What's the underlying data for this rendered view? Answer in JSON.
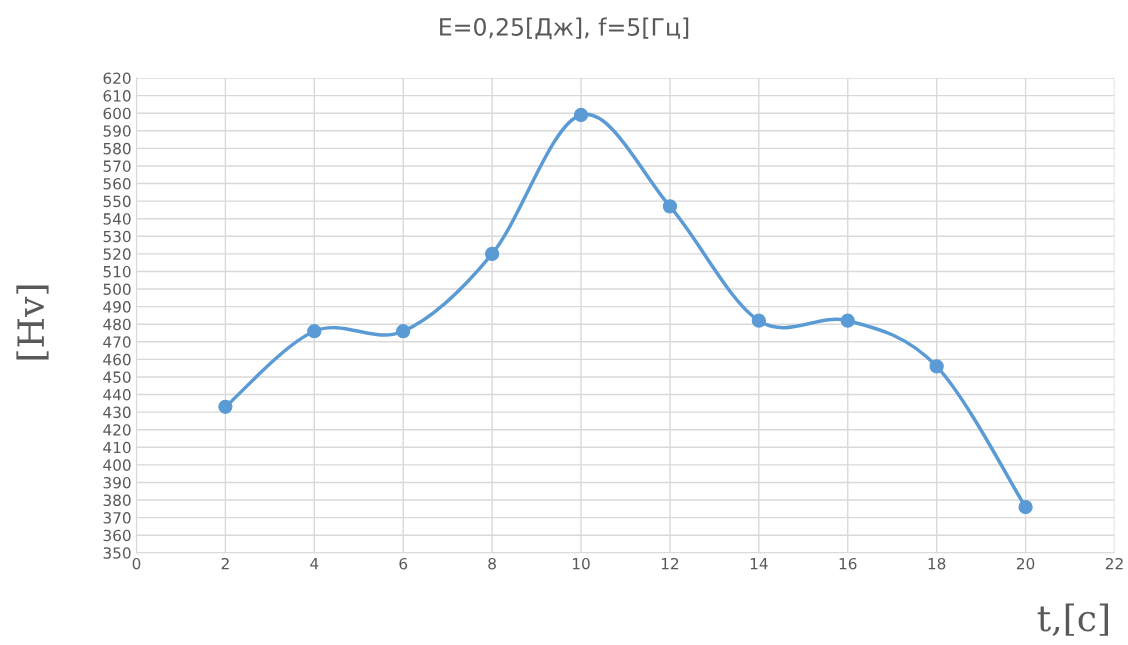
{
  "chart_data": {
    "type": "line",
    "title": "E=0,25[Дж], f=5[Гц]",
    "xlabel": "t,[c]",
    "ylabel": "[Hv]",
    "x": [
      2,
      4,
      6,
      8,
      10,
      12,
      14,
      16,
      18,
      20
    ],
    "series": [
      {
        "color": "#5b9bd5",
        "values": [
          433,
          476,
          476,
          520,
          599,
          547,
          482,
          482,
          456,
          376
        ]
      }
    ],
    "xlim": [
      0,
      22
    ],
    "xticks": [
      0,
      2,
      4,
      6,
      8,
      10,
      12,
      14,
      16,
      18,
      20,
      22
    ],
    "ylim": [
      350,
      620
    ],
    "yticks": [
      350,
      360,
      370,
      380,
      390,
      400,
      410,
      420,
      430,
      440,
      450,
      460,
      470,
      480,
      490,
      500,
      510,
      520,
      530,
      540,
      550,
      560,
      570,
      580,
      590,
      600,
      610,
      620
    ],
    "grid": true,
    "marker": "circle",
    "line_style": "solid",
    "legend": false
  }
}
